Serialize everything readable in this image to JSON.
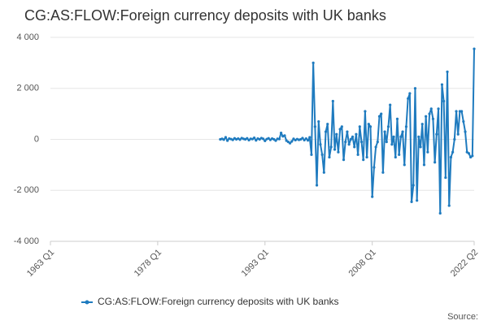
{
  "chart_data": {
    "type": "line",
    "title": "CG:AS:FLOW:Foreign currency deposits with UK banks",
    "source": "Source:",
    "categories": [
      "1963 Q1",
      null,
      null,
      null,
      null,
      null,
      null,
      null,
      null,
      null,
      null,
      null,
      null,
      null,
      null,
      null,
      null,
      null,
      null,
      null,
      null,
      null,
      null,
      null,
      null,
      null,
      null,
      null,
      null,
      null,
      null,
      null,
      null,
      null,
      null,
      null,
      null,
      null,
      null,
      null,
      null,
      null,
      null,
      null,
      null,
      null,
      null,
      null,
      null,
      null,
      null,
      null,
      null,
      null,
      null,
      null,
      null,
      null,
      null,
      null,
      "1978 Q1",
      null,
      null,
      null,
      null,
      null,
      null,
      null,
      null,
      null,
      null,
      null,
      null,
      null,
      null,
      null,
      null,
      null,
      null,
      null,
      null,
      null,
      null,
      null,
      null,
      null,
      null,
      null,
      null,
      null,
      null,
      null,
      null,
      null,
      null,
      null,
      null,
      null,
      null,
      null,
      null,
      null,
      null,
      null,
      null,
      null,
      null,
      null,
      null,
      null,
      null,
      null,
      null,
      null,
      null,
      null,
      null,
      null,
      null,
      null,
      "1993 Q1",
      null,
      null,
      null,
      null,
      null,
      null,
      null,
      null,
      null,
      null,
      null,
      null,
      null,
      null,
      null,
      null,
      null,
      null,
      null,
      null,
      null,
      null,
      null,
      null,
      null,
      null,
      null,
      null,
      null,
      null,
      null,
      null,
      null,
      null,
      null,
      null,
      null,
      null,
      null,
      null,
      null,
      null,
      null,
      null,
      null,
      null,
      null,
      null,
      null,
      null,
      null,
      null,
      null,
      null,
      null,
      null,
      null,
      null,
      null,
      "2008 Q1",
      null,
      null,
      null,
      null,
      null,
      null,
      null,
      null,
      null,
      null,
      null,
      null,
      null,
      null,
      null,
      null,
      null,
      null,
      null,
      null,
      null,
      null,
      null,
      null,
      null,
      null,
      null,
      null,
      null,
      null,
      null,
      null,
      null,
      null,
      null,
      null,
      null,
      null,
      null,
      null,
      null,
      null,
      null,
      null,
      null,
      null,
      null,
      null,
      null,
      null,
      null,
      null,
      null,
      null,
      null,
      null,
      "2022 Q2"
    ],
    "series": [
      {
        "name": "CG:AS:FLOW:Foreign currency deposits with UK banks",
        "color": "#1f7bbf",
        "values": [
          null,
          null,
          null,
          null,
          null,
          null,
          null,
          null,
          null,
          null,
          null,
          null,
          null,
          null,
          null,
          null,
          null,
          null,
          null,
          null,
          null,
          null,
          null,
          null,
          null,
          null,
          null,
          null,
          null,
          null,
          null,
          null,
          null,
          null,
          null,
          null,
          null,
          null,
          null,
          null,
          null,
          null,
          null,
          null,
          null,
          null,
          null,
          null,
          null,
          null,
          null,
          null,
          null,
          null,
          null,
          null,
          null,
          null,
          null,
          null,
          null,
          null,
          null,
          null,
          null,
          null,
          null,
          null,
          null,
          null,
          null,
          null,
          null,
          null,
          null,
          null,
          null,
          null,
          null,
          null,
          null,
          null,
          null,
          null,
          null,
          null,
          null,
          null,
          null,
          null,
          null,
          null,
          null,
          null,
          null,
          0,
          20,
          -10,
          80,
          -50,
          30,
          10,
          -20,
          40,
          0,
          30,
          -10,
          50,
          20,
          0,
          40,
          -30,
          20,
          10,
          60,
          -40,
          30,
          0,
          50,
          20,
          -60,
          10,
          40,
          -20,
          30,
          0,
          -50,
          20,
          10,
          250,
          120,
          150,
          -50,
          -100,
          -150,
          -80,
          20,
          -30,
          10,
          -20,
          0,
          50,
          -30,
          30,
          -40,
          80,
          -600,
          3000,
          500,
          -1800,
          700,
          -200,
          -600,
          -1300,
          300,
          600,
          -700,
          -300,
          1500,
          -400,
          200,
          -500,
          400,
          500,
          -800,
          -100,
          300,
          -200,
          0,
          100,
          -300,
          200,
          -600,
          500,
          -100,
          -800,
          1100,
          -700,
          600,
          500,
          -2250,
          -1100,
          -300,
          -100,
          900,
          1000,
          -1300,
          300,
          -100,
          500,
          1350,
          -200,
          100,
          -700,
          800,
          -600,
          100,
          300,
          -1000,
          500,
          1600,
          1800,
          -2450,
          -1800,
          2000,
          -2400,
          100,
          -300,
          600,
          -1000,
          900,
          -500,
          1000,
          1200,
          800,
          -900,
          200,
          1200,
          -2900,
          2150,
          1500,
          -1500,
          2650,
          -2600,
          -700,
          -500,
          0,
          1100,
          200,
          1100,
          1100,
          700,
          300,
          -500,
          -550,
          -700,
          -650,
          3550
        ]
      }
    ],
    "ylim": [
      -4000,
      4000
    ],
    "yticks": [
      {
        "value": -4000,
        "label": "-4 000"
      },
      {
        "value": -2000,
        "label": "-2 000"
      },
      0,
      {
        "value": 2000,
        "label": "2 000"
      },
      {
        "value": 4000,
        "label": "4 000"
      }
    ],
    "grid": true
  }
}
